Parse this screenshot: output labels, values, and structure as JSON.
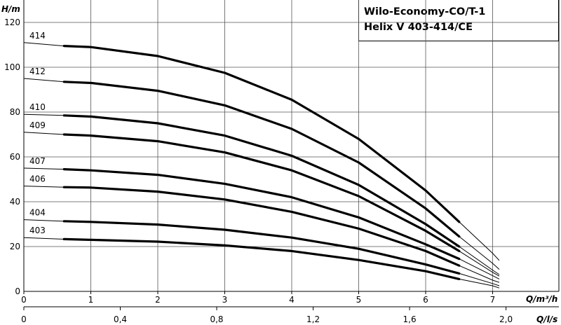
{
  "chart_data": {
    "type": "line",
    "title_lines": [
      "Wilo-Economy-CO/T-1",
      "Helix V 403-414/CE"
    ],
    "ylabel": "H/m",
    "xlabel": "Q/m³/h",
    "xlabel2": "Q/l/s",
    "xlim": [
      0,
      8
    ],
    "ylim": [
      0,
      130
    ],
    "y_ticks": [
      0,
      20,
      40,
      60,
      80,
      100,
      120
    ],
    "x_ticks": [
      0,
      1,
      2,
      3,
      4,
      5,
      6,
      7
    ],
    "x2_ticks": [
      {
        "value": 0,
        "label": "0"
      },
      {
        "value": 1.44,
        "label": "0,4"
      },
      {
        "value": 2.88,
        "label": "0,8"
      },
      {
        "value": 4.32,
        "label": "1,2"
      },
      {
        "value": 5.76,
        "label": "1,6"
      },
      {
        "value": 7.2,
        "label": "2,0"
      }
    ],
    "grid": true,
    "series": [
      {
        "name": "414",
        "head_at_zero": 111,
        "points": [
          [
            0.6,
            109.5
          ],
          [
            1,
            109
          ],
          [
            2,
            105
          ],
          [
            3,
            97.5
          ],
          [
            4,
            85.5
          ],
          [
            5,
            68
          ],
          [
            6,
            45
          ],
          [
            6.5,
            31
          ],
          [
            7.0,
            17
          ],
          [
            7.1,
            13.8
          ]
        ]
      },
      {
        "name": "412",
        "head_at_zero": 95,
        "points": [
          [
            0.6,
            93.5
          ],
          [
            1,
            93
          ],
          [
            2,
            89.5
          ],
          [
            3,
            83
          ],
          [
            4,
            72.5
          ],
          [
            5,
            57.5
          ],
          [
            6,
            37
          ],
          [
            6.5,
            24.5
          ],
          [
            7.0,
            12.5
          ],
          [
            7.1,
            9.8
          ]
        ]
      },
      {
        "name": "410",
        "head_at_zero": 79,
        "points": [
          [
            0.6,
            78.5
          ],
          [
            1,
            78
          ],
          [
            2,
            75
          ],
          [
            3,
            69.5
          ],
          [
            4,
            60.5
          ],
          [
            5,
            47.5
          ],
          [
            6,
            30
          ],
          [
            6.5,
            20
          ],
          [
            7.0,
            9.5
          ],
          [
            7.1,
            7.5
          ]
        ]
      },
      {
        "name": "409",
        "head_at_zero": 71,
        "points": [
          [
            0.6,
            70
          ],
          [
            1,
            69.5
          ],
          [
            2,
            67
          ],
          [
            3,
            62
          ],
          [
            4,
            54
          ],
          [
            5,
            42.5
          ],
          [
            6,
            27
          ],
          [
            6.5,
            18
          ],
          [
            7.0,
            8.5
          ],
          [
            7.1,
            6.8
          ]
        ]
      },
      {
        "name": "407",
        "head_at_zero": 55,
        "points": [
          [
            0.6,
            54.5
          ],
          [
            1,
            54
          ],
          [
            2,
            52
          ],
          [
            3,
            48
          ],
          [
            4,
            42
          ],
          [
            5,
            33
          ],
          [
            6,
            21
          ],
          [
            6.5,
            14.5
          ],
          [
            7.0,
            7
          ],
          [
            7.1,
            5.5
          ]
        ]
      },
      {
        "name": "406",
        "head_at_zero": 47,
        "points": [
          [
            0.6,
            46.5
          ],
          [
            1,
            46.3
          ],
          [
            2,
            44.5
          ],
          [
            3,
            41
          ],
          [
            4,
            35.5
          ],
          [
            5,
            28
          ],
          [
            6,
            18
          ],
          [
            6.5,
            11.5
          ],
          [
            7.0,
            5
          ],
          [
            7.1,
            4
          ]
        ]
      },
      {
        "name": "404",
        "head_at_zero": 32,
        "points": [
          [
            0.6,
            31.3
          ],
          [
            1,
            31
          ],
          [
            2,
            29.8
          ],
          [
            3,
            27.5
          ],
          [
            4,
            24
          ],
          [
            5,
            19
          ],
          [
            6,
            12
          ],
          [
            6.5,
            8
          ],
          [
            7.0,
            3.5
          ],
          [
            7.1,
            2.5
          ]
        ]
      },
      {
        "name": "403",
        "head_at_zero": 24,
        "points": [
          [
            0.6,
            23.3
          ],
          [
            1,
            23
          ],
          [
            2,
            22.2
          ],
          [
            3,
            20.5
          ],
          [
            4,
            18
          ],
          [
            5,
            14
          ],
          [
            6,
            9
          ],
          [
            6.5,
            5.5
          ],
          [
            7.0,
            2.5
          ],
          [
            7.1,
            1.5
          ]
        ]
      }
    ]
  }
}
